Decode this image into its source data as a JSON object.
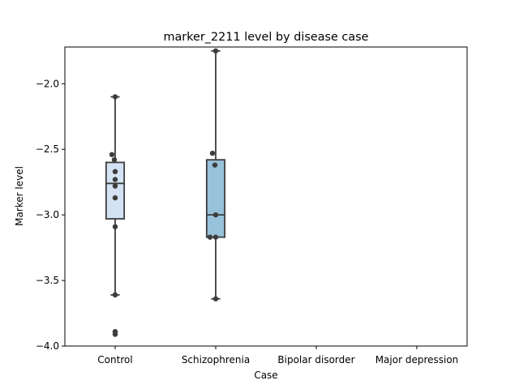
{
  "chart_data": {
    "type": "box",
    "title": "marker_2211 level by disease case",
    "xlabel": "Case",
    "ylabel": "Marker level",
    "categories": [
      "Control",
      "Schizophrenia",
      "Bipolar disorder",
      "Major depression"
    ],
    "ylim": [
      -4.0,
      -1.72
    ],
    "yticks": [
      -4.0,
      -3.5,
      -3.0,
      -2.5,
      -2.0
    ],
    "ytick_labels": [
      "−4.0",
      "−3.5",
      "−3.0",
      "−2.5",
      "−2.0"
    ],
    "grid": false,
    "boxes": [
      {
        "category": "Control",
        "color": "#d4e3f3",
        "whisker_low": -3.61,
        "q1": -3.03,
        "median": -2.76,
        "q3": -2.6,
        "whisker_high": -2.1,
        "outliers": [
          -3.89,
          -3.91
        ],
        "points": [
          -2.1,
          -2.54,
          -2.58,
          -2.67,
          -2.73,
          -2.78,
          -2.87,
          -3.09,
          -3.61,
          -3.89,
          -3.91
        ]
      },
      {
        "category": "Schizophrenia",
        "color": "#98c1da",
        "whisker_low": -3.64,
        "q1": -3.17,
        "median": -3.0,
        "q3": -2.58,
        "whisker_high": -1.75,
        "outliers": [],
        "points": [
          -1.75,
          -2.53,
          -2.62,
          -3.0,
          -3.17,
          -3.17,
          -3.64
        ]
      }
    ]
  }
}
